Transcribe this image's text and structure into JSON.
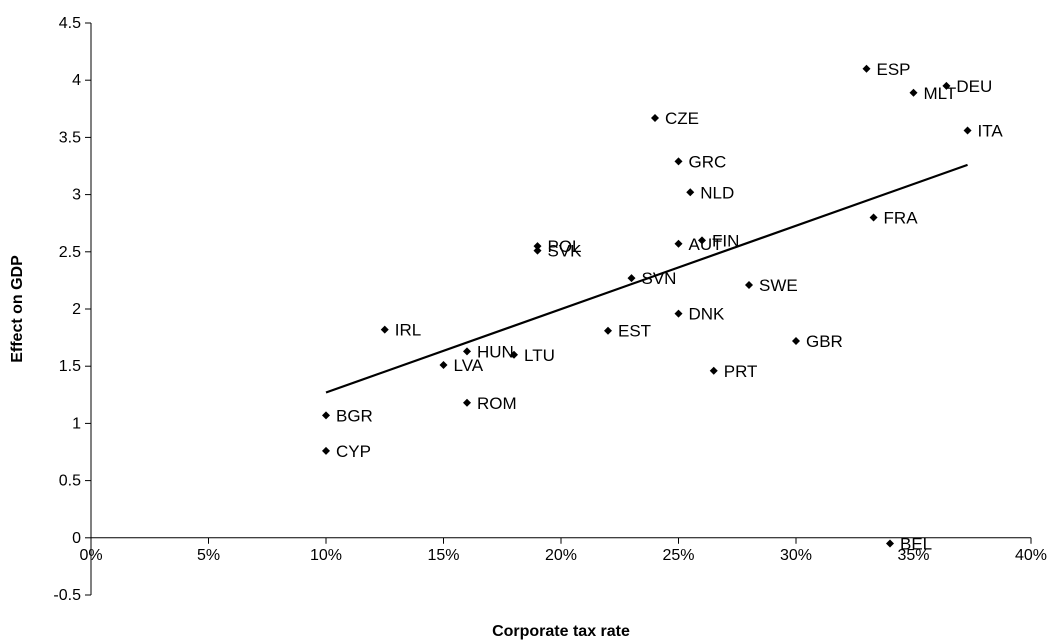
{
  "chart_data": {
    "type": "scatter",
    "title": "",
    "xlabel": "Corporate tax rate",
    "ylabel": "Effect on GDP",
    "xlim": [
      0,
      0.4
    ],
    "ylim": [
      -0.5,
      4.5
    ],
    "x_ticks": [
      0,
      0.05,
      0.1,
      0.15,
      0.2,
      0.25,
      0.3,
      0.35,
      0.4
    ],
    "x_tick_labels": [
      "0%",
      "5%",
      "10%",
      "15%",
      "20%",
      "25%",
      "30%",
      "35%",
      "40%"
    ],
    "y_ticks": [
      -0.5,
      0,
      0.5,
      1,
      1.5,
      2,
      2.5,
      3,
      3.5,
      4,
      4.5
    ],
    "y_tick_labels": [
      "-0.5",
      "0",
      "0.5",
      "1",
      "1.5",
      "2",
      "2.5",
      "3",
      "3.5",
      "4",
      "4.5"
    ],
    "grid": false,
    "legend": "none",
    "marker_color": "#000000",
    "points": [
      {
        "label": "ESP",
        "x": 0.33,
        "y": 4.1
      },
      {
        "label": "DEU",
        "x": 0.364,
        "y": 3.95
      },
      {
        "label": "MLT",
        "x": 0.35,
        "y": 3.89
      },
      {
        "label": "ITA",
        "x": 0.373,
        "y": 3.56
      },
      {
        "label": "CZE",
        "x": 0.24,
        "y": 3.67
      },
      {
        "label": "GRC",
        "x": 0.25,
        "y": 3.29
      },
      {
        "label": "NLD",
        "x": 0.255,
        "y": 3.02
      },
      {
        "label": "FRA",
        "x": 0.333,
        "y": 2.8
      },
      {
        "label": "POL",
        "x": 0.19,
        "y": 2.55
      },
      {
        "label": "SVK",
        "x": 0.19,
        "y": 2.51
      },
      {
        "label": "AUT",
        "x": 0.25,
        "y": 2.57
      },
      {
        "label": "FIN",
        "x": 0.26,
        "y": 2.6
      },
      {
        "label": "SVN",
        "x": 0.23,
        "y": 2.27
      },
      {
        "label": "SWE",
        "x": 0.28,
        "y": 2.21
      },
      {
        "label": "DNK",
        "x": 0.25,
        "y": 1.96
      },
      {
        "label": "EST",
        "x": 0.22,
        "y": 1.81
      },
      {
        "label": "IRL",
        "x": 0.125,
        "y": 1.82
      },
      {
        "label": "GBR",
        "x": 0.3,
        "y": 1.72
      },
      {
        "label": "HUN",
        "x": 0.16,
        "y": 1.63
      },
      {
        "label": "LTU",
        "x": 0.18,
        "y": 1.6
      },
      {
        "label": "LVA",
        "x": 0.15,
        "y": 1.51
      },
      {
        "label": "PRT",
        "x": 0.265,
        "y": 1.46
      },
      {
        "label": "ROM",
        "x": 0.16,
        "y": 1.18
      },
      {
        "label": "BGR",
        "x": 0.1,
        "y": 1.07
      },
      {
        "label": "CYP",
        "x": 0.1,
        "y": 0.76
      },
      {
        "label": "BEL",
        "x": 0.34,
        "y": -0.05
      }
    ],
    "trendline": {
      "x": [
        0.1,
        0.373
      ],
      "y": [
        1.27,
        3.26
      ]
    }
  }
}
